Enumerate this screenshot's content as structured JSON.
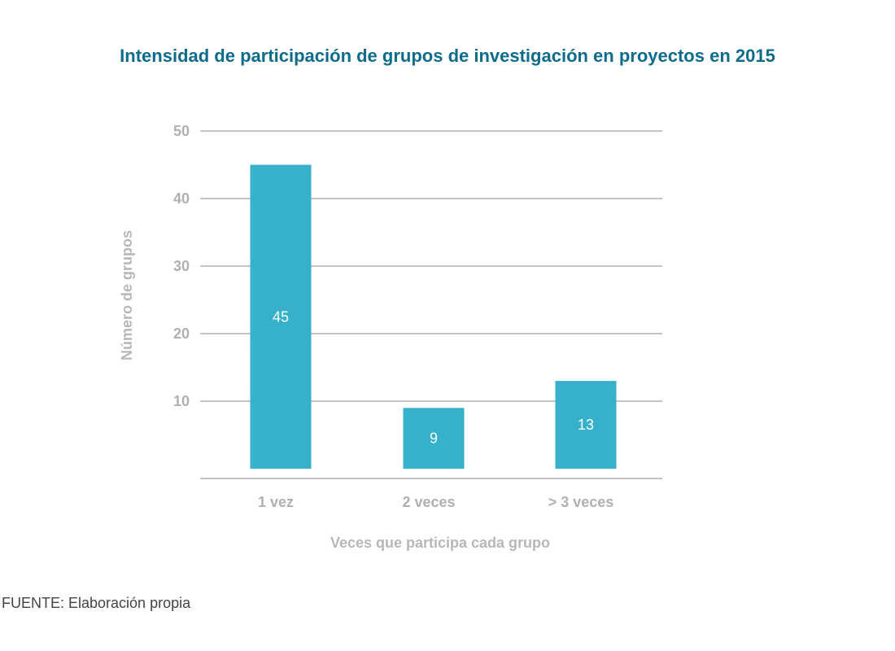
{
  "chart_data": {
    "type": "bar",
    "title": "Intensidad de participación de grupos de investigación en proyectos en  2015",
    "xlabel": "Veces que participa cada grupo",
    "ylabel": "Número de grupos",
    "categories": [
      "1 vez",
      "2 veces",
      "> 3 veces"
    ],
    "values": [
      45,
      9,
      13
    ],
    "data_labels": [
      "45",
      "9",
      "13"
    ],
    "yticks": [
      10,
      20,
      30,
      40,
      50
    ],
    "ytick_labels": [
      "10",
      "20",
      "30",
      "40",
      "50"
    ],
    "ylim": [
      0,
      50
    ],
    "grid": true,
    "legend": "none",
    "bar_color": "#36b1c9",
    "grid_color": "#c4c4c4"
  },
  "source": "FUENTE: Elaboración propia"
}
